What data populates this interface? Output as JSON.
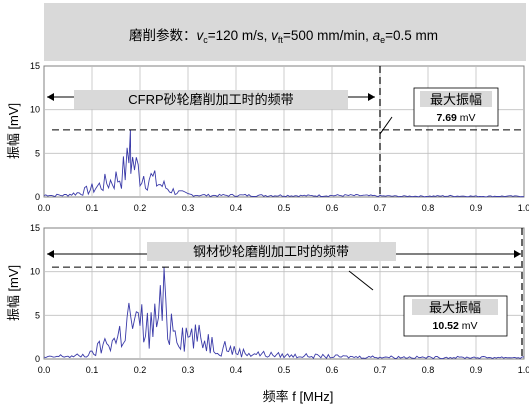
{
  "header": {
    "prefix": "磨削参数：",
    "vc_sym": "v",
    "vc_sub": "c",
    "vc_val": "=120 m/s, ",
    "vft_sym": "v",
    "vft_sub": "ft",
    "vft_val": "=500 mm/min, ",
    "ae_sym": "a",
    "ae_sub": "e",
    "ae_val": "=0.5 mm"
  },
  "x_axis_label": "频率 f [MHz]",
  "chart_data": [
    {
      "type": "line",
      "title": "CFRP砂轮磨削加工时的频带",
      "ylabel": "振幅 [mV]",
      "xlim": [
        0,
        1
      ],
      "ylim": [
        0,
        15
      ],
      "xticks": [
        "0.0",
        "0.1",
        "0.2",
        "0.3",
        "0.4",
        "0.5",
        "0.6",
        "0.7",
        "0.8",
        "0.9",
        "1.0"
      ],
      "yticks": [
        "0",
        "5",
        "10",
        "15"
      ],
      "band_end": 0.7,
      "max_line": 7.69,
      "max_box_title": "最大振幅",
      "max_value": "7.69",
      "max_unit": " mV",
      "series": [
        {
          "color": "#3a3aa8",
          "x": [
            0.0,
            0.01,
            0.02,
            0.03,
            0.04,
            0.05,
            0.06,
            0.07,
            0.08,
            0.09,
            0.1,
            0.11,
            0.12,
            0.13,
            0.14,
            0.15,
            0.16,
            0.17,
            0.18,
            0.19,
            0.2,
            0.21,
            0.22,
            0.23,
            0.24,
            0.25,
            0.26,
            0.27,
            0.28,
            0.29,
            0.3,
            0.32,
            0.35,
            0.4,
            0.45,
            0.5,
            0.55,
            0.6,
            0.65,
            0.7,
            0.75,
            0.8,
            0.85,
            0.9,
            0.95,
            1.0
          ],
          "y": [
            0.3,
            0.5,
            0.2,
            0.4,
            0.3,
            0.5,
            0.6,
            0.8,
            1.0,
            1.3,
            1.6,
            2.0,
            2.4,
            2.8,
            3.2,
            3.6,
            4.2,
            5.6,
            7.69,
            6.0,
            4.8,
            4.4,
            3.9,
            3.2,
            2.6,
            2.1,
            1.6,
            1.2,
            0.9,
            0.7,
            0.5,
            0.4,
            0.3,
            0.35,
            0.3,
            0.3,
            0.25,
            0.3,
            0.3,
            0.2,
            0.15,
            0.15,
            0.2,
            0.15,
            0.15,
            0.15
          ]
        }
      ]
    },
    {
      "type": "line",
      "title": "钢材砂轮磨削加工时的频带",
      "ylabel": "振幅 [mV]",
      "xlim": [
        0,
        1
      ],
      "ylim": [
        0,
        15
      ],
      "xticks": [
        "0.0",
        "0.1",
        "0.2",
        "0.3",
        "0.4",
        "0.5",
        "0.6",
        "0.7",
        "0.8",
        "0.9",
        "1.0"
      ],
      "yticks": [
        "0",
        "5",
        "10",
        "15"
      ],
      "band_end": 1.0,
      "max_line": 10.52,
      "max_box_title": "最大振幅",
      "max_value": "10.52",
      "max_unit": " mV",
      "series": [
        {
          "color": "#3a3aa8",
          "x": [
            0.0,
            0.02,
            0.04,
            0.06,
            0.08,
            0.1,
            0.11,
            0.12,
            0.13,
            0.14,
            0.15,
            0.16,
            0.17,
            0.18,
            0.19,
            0.2,
            0.21,
            0.22,
            0.23,
            0.24,
            0.25,
            0.26,
            0.27,
            0.28,
            0.29,
            0.3,
            0.31,
            0.32,
            0.33,
            0.34,
            0.35,
            0.36,
            0.37,
            0.38,
            0.39,
            0.4,
            0.42,
            0.44,
            0.46,
            0.48,
            0.5,
            0.55,
            0.6,
            0.65,
            0.7,
            0.75,
            0.8,
            0.85,
            0.9,
            0.95,
            1.0
          ],
          "y": [
            0.3,
            0.4,
            0.6,
            0.5,
            0.7,
            1.0,
            1.8,
            2.4,
            3.2,
            4.0,
            3.5,
            5.2,
            6.0,
            8.8,
            5.5,
            7.5,
            6.2,
            5.8,
            7.2,
            8.6,
            10.52,
            6.4,
            8.0,
            6.0,
            5.2,
            4.6,
            5.0,
            4.2,
            3.4,
            4.0,
            3.0,
            2.6,
            2.2,
            2.8,
            1.8,
            1.5,
            1.2,
            1.1,
            0.9,
            0.8,
            0.7,
            0.6,
            0.5,
            0.4,
            0.4,
            0.35,
            0.3,
            0.3,
            0.3,
            0.3,
            0.3
          ]
        }
      ]
    }
  ]
}
